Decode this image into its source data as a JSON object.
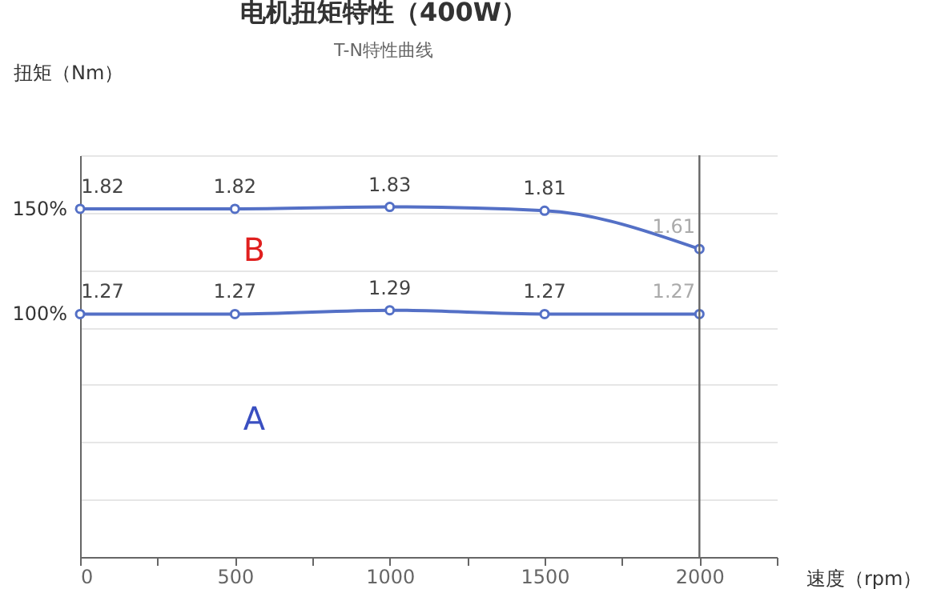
{
  "chart_data": {
    "type": "line",
    "title": "电机扭矩特性（400W）",
    "subtitle": "T-N特性曲线",
    "xlabel": "速度（rpm）",
    "ylabel": "扭矩（Nm）",
    "x": [
      0,
      500,
      1000,
      1500,
      2000
    ],
    "series": [
      {
        "color": "#5470c6",
        "values": [
          1.82,
          1.82,
          1.83,
          1.81,
          1.61
        ]
      },
      {
        "color": "#5470c6",
        "values": [
          1.27,
          1.27,
          1.29,
          1.27,
          1.27
        ]
      }
    ],
    "xlim": [
      0,
      2250
    ],
    "xticks": [
      0,
      {
        "value": 250,
        "label": null
      },
      500,
      {
        "value": 750,
        "label": null
      },
      1000,
      {
        "value": 1250,
        "label": null
      },
      1500,
      {
        "value": 1750,
        "label": null
      },
      2000,
      {
        "value": 2250,
        "label": null
      }
    ],
    "ylim": [
      0,
      2.1
    ],
    "yticks": [
      {
        "value": 0,
        "label": null
      },
      {
        "value": 0.3,
        "label": null
      },
      {
        "value": 0.6,
        "label": null
      },
      {
        "value": 0.9,
        "label": null
      },
      {
        "value": 1.2,
        "label": null
      },
      {
        "value": 1.5,
        "label": null
      },
      {
        "value": 1.8,
        "label": null
      },
      {
        "value": 2.1,
        "label": null
      }
    ],
    "grid": "y",
    "marker": "circle",
    "line_style": "solid",
    "data_labels": true,
    "ref_lines": [
      {
        "axis": "x",
        "value": 2000,
        "color": "#666666"
      }
    ],
    "annotations": [
      {
        "text": "150%",
        "x": 0,
        "y": 1.82
      },
      {
        "text": "100%",
        "x": 0,
        "y": 1.27
      },
      "B",
      "A"
    ]
  }
}
